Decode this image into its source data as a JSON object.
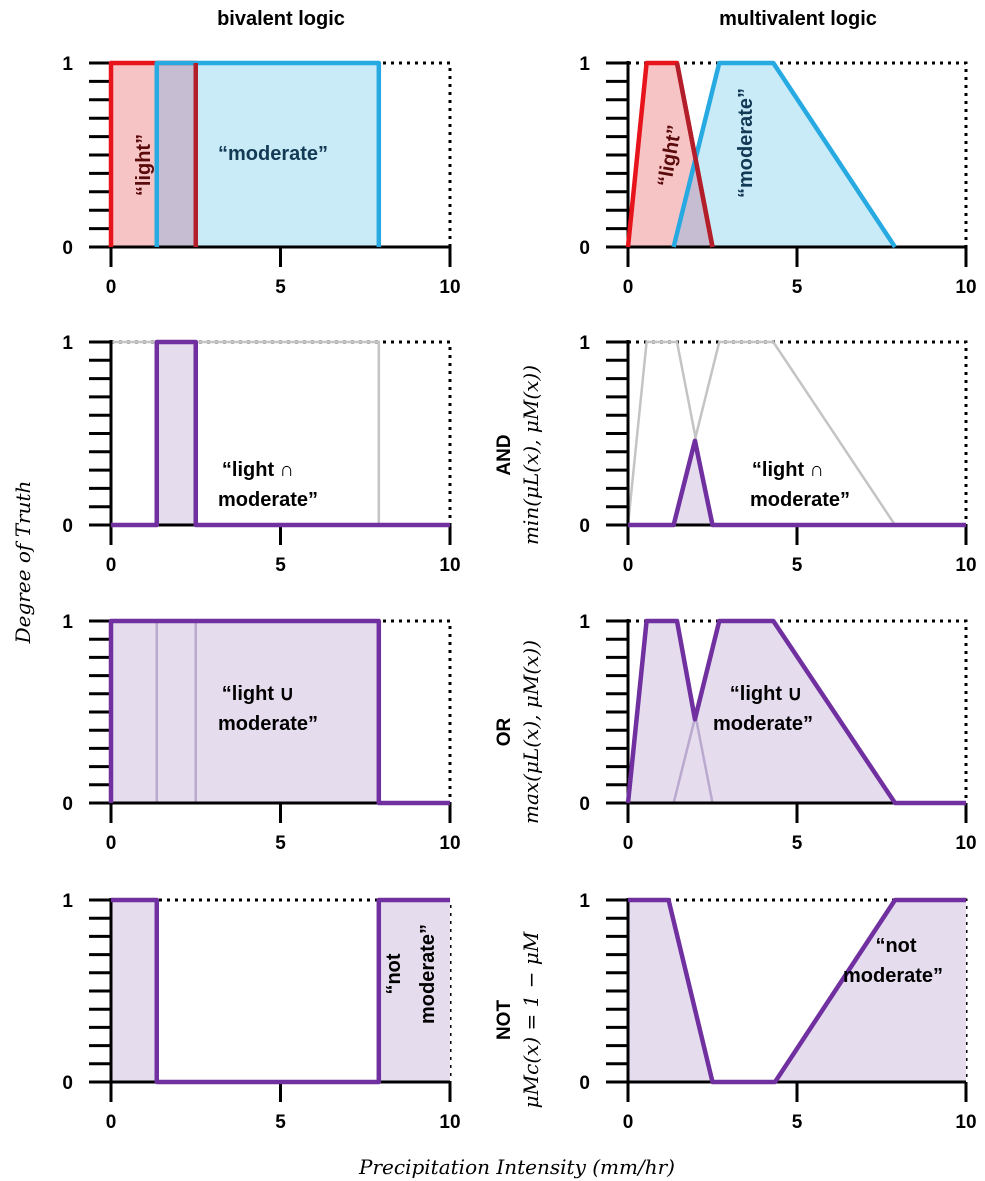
{
  "titles": {
    "left": "bivalent logic",
    "right": "multivalent logic"
  },
  "ylabel": "Degree of Truth",
  "xlabel": "Precipitation Intensity (mm/hr)",
  "operators": [
    {
      "name": "AND",
      "formula": "min(μL(x), μM(x))"
    },
    {
      "name": "OR",
      "formula": "max(μL(x), μM(x))"
    },
    {
      "name": "NOT",
      "formula": "μMc(x) = 1 − μM"
    }
  ],
  "annotations": {
    "light": "“light”",
    "moderate": "“moderate”",
    "and_1": "“light ∩",
    "and_2": "moderate”",
    "or_1": "“light ∪",
    "or_2": "moderate”",
    "not_1": "“not",
    "not_2": "moderate”"
  },
  "colors": {
    "light": "#e8141c",
    "light_fill": "#f7c4c6",
    "moderate": "#27a9e1",
    "moderate_fill": "#c3e8f6",
    "overlap_fill": "#c6bdd2",
    "result": "#7030a0",
    "result_fill": "#e5dcee",
    "ghost": "#c8c8c8"
  },
  "chart_data": [
    {
      "type": "line",
      "panel": "bivalent-sets",
      "xlim": [
        0,
        10
      ],
      "ylim": [
        0,
        1
      ],
      "xticks": [
        0,
        5,
        10
      ],
      "yticks": [
        0,
        1
      ],
      "series": [
        {
          "x": [
            0,
            0,
            1.35,
            1.35,
            2.5,
            2.5
          ],
          "y": [
            0,
            1,
            1,
            1,
            1,
            0
          ]
        },
        {
          "x": [
            1.35,
            1.35,
            7.9,
            7.9
          ],
          "y": [
            0,
            1,
            1,
            0
          ]
        }
      ]
    },
    {
      "type": "line",
      "panel": "multivalent-sets",
      "xlim": [
        0,
        10
      ],
      "ylim": [
        0,
        1
      ],
      "xticks": [
        0,
        5,
        10
      ],
      "yticks": [
        0,
        1
      ],
      "series": [
        {
          "x": [
            0,
            0.55,
            1.45,
            2.5
          ],
          "y": [
            0,
            1,
            1,
            0
          ]
        },
        {
          "x": [
            1.35,
            2.7,
            4.3,
            7.9
          ],
          "y": [
            0,
            1,
            1,
            0
          ]
        }
      ]
    },
    {
      "type": "line",
      "panel": "bivalent-and",
      "xlim": [
        0,
        10
      ],
      "ylim": [
        0,
        1
      ],
      "xticks": [
        0,
        5,
        10
      ],
      "yticks": [
        0,
        1
      ],
      "series": [
        {
          "x": [
            0,
            1.35,
            1.35,
            2.5,
            2.5,
            10
          ],
          "y": [
            0,
            0,
            1,
            1,
            0,
            0
          ]
        }
      ]
    },
    {
      "type": "line",
      "panel": "multivalent-and",
      "xlim": [
        0,
        10
      ],
      "ylim": [
        0,
        1
      ],
      "xticks": [
        0,
        5,
        10
      ],
      "yticks": [
        0,
        1
      ],
      "series": [
        {
          "x": [
            0,
            1.35,
            1.98,
            2.5,
            10
          ],
          "y": [
            0,
            0,
            0.46,
            0,
            0
          ]
        }
      ]
    },
    {
      "type": "line",
      "panel": "bivalent-or",
      "xlim": [
        0,
        10
      ],
      "ylim": [
        0,
        1
      ],
      "xticks": [
        0,
        5,
        10
      ],
      "yticks": [
        0,
        1
      ],
      "series": [
        {
          "x": [
            0,
            0,
            7.9,
            7.9,
            10
          ],
          "y": [
            0,
            1,
            1,
            0,
            0
          ]
        }
      ]
    },
    {
      "type": "line",
      "panel": "multivalent-or",
      "xlim": [
        0,
        10
      ],
      "ylim": [
        0,
        1
      ],
      "xticks": [
        0,
        5,
        10
      ],
      "yticks": [
        0,
        1
      ],
      "series": [
        {
          "x": [
            0,
            0.55,
            1.45,
            1.98,
            2.7,
            4.3,
            7.9,
            10
          ],
          "y": [
            0,
            1,
            1,
            0.46,
            1,
            1,
            0,
            0
          ]
        }
      ]
    },
    {
      "type": "line",
      "panel": "bivalent-not",
      "xlim": [
        0,
        10
      ],
      "ylim": [
        0,
        1
      ],
      "xticks": [
        0,
        5,
        10
      ],
      "yticks": [
        0,
        1
      ],
      "series": [
        {
          "x": [
            0,
            1.35,
            1.35,
            7.9,
            7.9,
            10
          ],
          "y": [
            1,
            1,
            0,
            0,
            1,
            1
          ]
        }
      ]
    },
    {
      "type": "line",
      "panel": "multivalent-not",
      "xlim": [
        0,
        10
      ],
      "ylim": [
        0,
        1
      ],
      "xticks": [
        0,
        5,
        10
      ],
      "yticks": [
        0,
        1
      ],
      "series": [
        {
          "x": [
            0,
            1.2,
            2.5,
            4.35,
            7.9,
            10
          ],
          "y": [
            1,
            1,
            0,
            0,
            1,
            1
          ]
        }
      ]
    }
  ]
}
